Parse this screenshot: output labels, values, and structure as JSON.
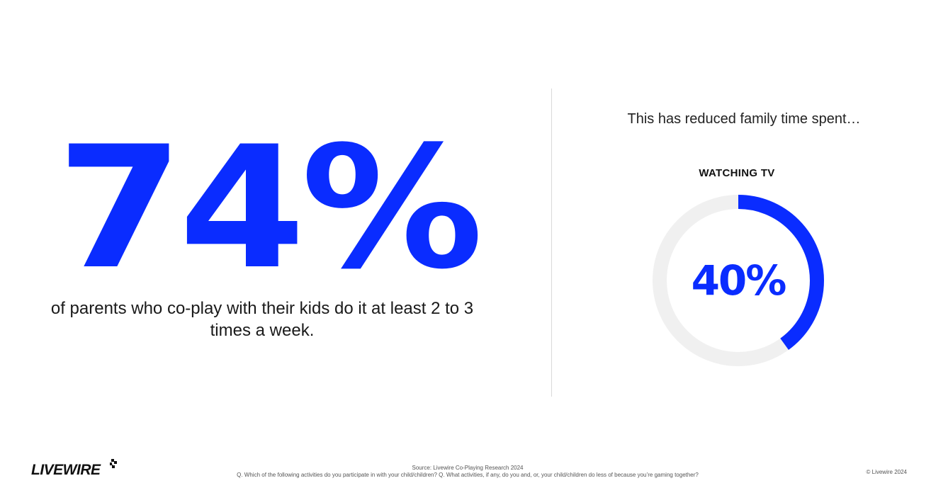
{
  "left_stat": {
    "value": "74%",
    "caption": "of parents who co-play with their kids do it at least 2 to 3 times a week."
  },
  "right_panel": {
    "title": "This has reduced family time spent…",
    "category": "WATCHING TV",
    "value_label": "40%",
    "value_fraction": 0.4,
    "track_color": "#f0f0f0",
    "fill_color": "#0a2cff"
  },
  "footer": {
    "logo_text": "LIVEWIRE",
    "source": "Source: Livewire Co-Playing Research 2024",
    "question": "Q. Which of the following activities do you participate in with your child/children? Q. What activities, if any, do you and, or, your child/children do less of because you’re gaming together?",
    "copyright": "© Livewire 2024"
  },
  "colors": {
    "accent": "#0a2cff",
    "text": "#1a1a1a",
    "divider": "#d9d9d9"
  }
}
